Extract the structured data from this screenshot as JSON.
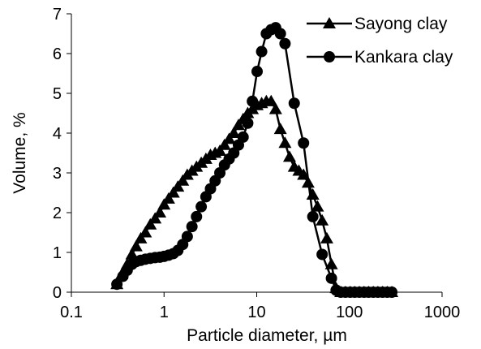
{
  "chart_data": {
    "type": "line",
    "title": "",
    "xlabel": "Particle diameter, µm",
    "ylabel": "Volume, %",
    "xscale": "log",
    "xlim": [
      0.1,
      1000
    ],
    "ylim": [
      0,
      7
    ],
    "x_ticks": [
      "0.1",
      "1",
      "10",
      "100",
      "1000"
    ],
    "y_ticks": [
      "0",
      "1",
      "2",
      "3",
      "4",
      "5",
      "6",
      "7"
    ],
    "grid": false,
    "legend_position": "top-right",
    "series": [
      {
        "name": "Sayong clay",
        "marker": "triangle",
        "color": "#000000",
        "points": [
          [
            0.31,
            0.2
          ],
          [
            0.35,
            0.45
          ],
          [
            0.4,
            0.7
          ],
          [
            0.45,
            0.95
          ],
          [
            0.5,
            1.15
          ],
          [
            0.56,
            1.35
          ],
          [
            0.63,
            1.5
          ],
          [
            0.71,
            1.7
          ],
          [
            0.8,
            1.85
          ],
          [
            0.9,
            2.0
          ],
          [
            1.0,
            2.2
          ],
          [
            1.12,
            2.35
          ],
          [
            1.26,
            2.5
          ],
          [
            1.41,
            2.65
          ],
          [
            1.59,
            2.8
          ],
          [
            1.78,
            2.95
          ],
          [
            2.0,
            3.05
          ],
          [
            2.24,
            3.15
          ],
          [
            2.52,
            3.25
          ],
          [
            2.83,
            3.35
          ],
          [
            3.17,
            3.45
          ],
          [
            3.56,
            3.5
          ],
          [
            4.0,
            3.55
          ],
          [
            4.49,
            3.7
          ],
          [
            5.04,
            3.85
          ],
          [
            5.66,
            4.0
          ],
          [
            6.35,
            4.2
          ],
          [
            7.13,
            4.35
          ],
          [
            8.0,
            4.5
          ],
          [
            8.98,
            4.6
          ],
          [
            10.1,
            4.7
          ],
          [
            11.3,
            4.75
          ],
          [
            12.7,
            4.8
          ],
          [
            14.3,
            4.8
          ],
          [
            16.0,
            4.6
          ],
          [
            18.0,
            4.1
          ],
          [
            20.2,
            3.75
          ],
          [
            22.6,
            3.4
          ],
          [
            25.4,
            3.15
          ],
          [
            28.5,
            3.05
          ],
          [
            32.0,
            2.95
          ],
          [
            35.9,
            2.75
          ],
          [
            40.3,
            2.45
          ],
          [
            45.3,
            2.15
          ],
          [
            50.8,
            1.8
          ],
          [
            57.1,
            1.35
          ],
          [
            64.0,
            0.7
          ],
          [
            71.9,
            0.1
          ],
          [
            80.7,
            0.0
          ],
          [
            90.6,
            0.0
          ],
          [
            102,
            0.0
          ],
          [
            114,
            0.0
          ],
          [
            128,
            0.0
          ],
          [
            144,
            0.0
          ],
          [
            161,
            0.0
          ],
          [
            181,
            0.0
          ],
          [
            203,
            0.0
          ],
          [
            228,
            0.0
          ],
          [
            256,
            0.0
          ],
          [
            287,
            0.0
          ]
        ]
      },
      {
        "name": "Kankara clay",
        "marker": "circle",
        "color": "#000000",
        "points": [
          [
            0.31,
            0.2
          ],
          [
            0.36,
            0.4
          ],
          [
            0.4,
            0.55
          ],
          [
            0.45,
            0.7
          ],
          [
            0.5,
            0.77
          ],
          [
            0.56,
            0.8
          ],
          [
            0.63,
            0.83
          ],
          [
            0.71,
            0.85
          ],
          [
            0.8,
            0.87
          ],
          [
            0.9,
            0.88
          ],
          [
            1.0,
            0.9
          ],
          [
            1.12,
            0.93
          ],
          [
            1.26,
            0.97
          ],
          [
            1.41,
            1.05
          ],
          [
            1.59,
            1.2
          ],
          [
            1.78,
            1.4
          ],
          [
            2.0,
            1.65
          ],
          [
            2.24,
            1.9
          ],
          [
            2.52,
            2.15
          ],
          [
            2.83,
            2.4
          ],
          [
            3.17,
            2.6
          ],
          [
            3.56,
            2.8
          ],
          [
            4.0,
            3.0
          ],
          [
            4.49,
            3.2
          ],
          [
            5.04,
            3.35
          ],
          [
            5.66,
            3.5
          ],
          [
            6.35,
            3.7
          ],
          [
            7.13,
            3.9
          ],
          [
            8.0,
            4.25
          ],
          [
            8.98,
            4.8
          ],
          [
            10.1,
            5.55
          ],
          [
            11.3,
            6.05
          ],
          [
            12.7,
            6.5
          ],
          [
            14.3,
            6.6
          ],
          [
            16.0,
            6.65
          ],
          [
            18.0,
            6.5
          ],
          [
            20.2,
            6.25
          ],
          [
            25.4,
            4.75
          ],
          [
            32.0,
            3.75
          ],
          [
            40.3,
            1.9
          ],
          [
            50.8,
            0.95
          ],
          [
            64.0,
            0.35
          ],
          [
            71.9,
            0.05
          ],
          [
            80.7,
            0.0
          ],
          [
            90.6,
            0.0
          ],
          [
            102,
            0.0
          ],
          [
            114,
            0.0
          ],
          [
            128,
            0.0
          ],
          [
            144,
            0.0
          ],
          [
            161,
            0.0
          ],
          [
            181,
            0.0
          ],
          [
            203,
            0.0
          ],
          [
            228,
            0.0
          ],
          [
            256,
            0.0
          ],
          [
            287,
            0.0
          ]
        ]
      }
    ]
  }
}
